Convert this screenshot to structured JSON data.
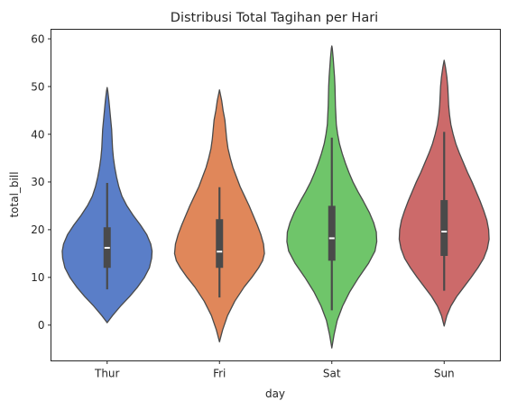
{
  "chart_data": {
    "type": "violin",
    "title": "Distribusi Total Tagihan per Hari",
    "xlabel": "day",
    "ylabel": "total_bill",
    "ylim": [
      -7.5,
      62
    ],
    "yticks": [
      0,
      10,
      20,
      30,
      40,
      50,
      60
    ],
    "grid": false,
    "legend": "none",
    "categories": [
      "Thur",
      "Fri",
      "Sat",
      "Sun"
    ],
    "colors": [
      "#5a7ec8",
      "#e0875a",
      "#6fc56a",
      "#cc6a6a"
    ],
    "violins": [
      {
        "category": "Thur",
        "extent": [
          0.5,
          49.8
        ],
        "whisker": [
          7.5,
          29.8
        ],
        "q1": 12.0,
        "median": 16.2,
        "q3": 20.5,
        "profile": [
          [
            0.5,
            0.0
          ],
          [
            2,
            0.12
          ],
          [
            4,
            0.3
          ],
          [
            6,
            0.5
          ],
          [
            8,
            0.68
          ],
          [
            10,
            0.83
          ],
          [
            12,
            0.94
          ],
          [
            14,
            0.99
          ],
          [
            15.5,
            1.0
          ],
          [
            17,
            0.97
          ],
          [
            19,
            0.88
          ],
          [
            21,
            0.74
          ],
          [
            23,
            0.58
          ],
          [
            25,
            0.44
          ],
          [
            27,
            0.33
          ],
          [
            29,
            0.26
          ],
          [
            31,
            0.21
          ],
          [
            33,
            0.17
          ],
          [
            35,
            0.14
          ],
          [
            37,
            0.12
          ],
          [
            39,
            0.11
          ],
          [
            41,
            0.1
          ],
          [
            43,
            0.08
          ],
          [
            45,
            0.06
          ],
          [
            47,
            0.04
          ],
          [
            49,
            0.015
          ],
          [
            49.8,
            0.0
          ]
        ]
      },
      {
        "category": "Fri",
        "extent": [
          -3.5,
          49.3
        ],
        "whisker": [
          5.8,
          28.9
        ],
        "q1": 12.0,
        "median": 15.4,
        "q3": 22.2,
        "profile": [
          [
            -3.5,
            0.0
          ],
          [
            -1,
            0.07
          ],
          [
            2,
            0.18
          ],
          [
            5,
            0.34
          ],
          [
            8,
            0.55
          ],
          [
            10,
            0.72
          ],
          [
            12,
            0.87
          ],
          [
            13.5,
            0.96
          ],
          [
            15,
            1.0
          ],
          [
            17,
            0.98
          ],
          [
            19,
            0.92
          ],
          [
            21,
            0.84
          ],
          [
            23,
            0.75
          ],
          [
            25,
            0.66
          ],
          [
            27,
            0.56
          ],
          [
            29,
            0.46
          ],
          [
            31,
            0.38
          ],
          [
            33,
            0.3
          ],
          [
            35,
            0.24
          ],
          [
            37,
            0.19
          ],
          [
            39,
            0.16
          ],
          [
            41,
            0.14
          ],
          [
            43,
            0.12
          ],
          [
            45,
            0.08
          ],
          [
            47,
            0.05
          ],
          [
            49.3,
            0.0
          ]
        ]
      },
      {
        "category": "Sat",
        "extent": [
          -4.8,
          58.5
        ],
        "whisker": [
          3.1,
          39.3
        ],
        "q1": 13.5,
        "median": 18.2,
        "q3": 25.0,
        "profile": [
          [
            -4.8,
            0.0
          ],
          [
            -2,
            0.05
          ],
          [
            1,
            0.12
          ],
          [
            4,
            0.24
          ],
          [
            7,
            0.4
          ],
          [
            10,
            0.6
          ],
          [
            13,
            0.82
          ],
          [
            15.5,
            0.96
          ],
          [
            17.5,
            1.0
          ],
          [
            19.5,
            0.99
          ],
          [
            21.5,
            0.93
          ],
          [
            23.5,
            0.84
          ],
          [
            26,
            0.7
          ],
          [
            28,
            0.58
          ],
          [
            30,
            0.47
          ],
          [
            32,
            0.38
          ],
          [
            34,
            0.3
          ],
          [
            36,
            0.23
          ],
          [
            38,
            0.17
          ],
          [
            40,
            0.13
          ],
          [
            42,
            0.1
          ],
          [
            44,
            0.09
          ],
          [
            46,
            0.08
          ],
          [
            48,
            0.075
          ],
          [
            50,
            0.07
          ],
          [
            52,
            0.06
          ],
          [
            54,
            0.045
          ],
          [
            56,
            0.03
          ],
          [
            58,
            0.01
          ],
          [
            58.5,
            0.0
          ]
        ]
      },
      {
        "category": "Sun",
        "extent": [
          -0.2,
          55.5
        ],
        "whisker": [
          7.2,
          40.5
        ],
        "q1": 14.5,
        "median": 19.6,
        "q3": 26.2,
        "profile": [
          [
            -0.2,
            0.0
          ],
          [
            2,
            0.06
          ],
          [
            4,
            0.15
          ],
          [
            6,
            0.28
          ],
          [
            8,
            0.44
          ],
          [
            10,
            0.6
          ],
          [
            12,
            0.75
          ],
          [
            14,
            0.88
          ],
          [
            16,
            0.96
          ],
          [
            18,
            1.0
          ],
          [
            20,
            0.99
          ],
          [
            22,
            0.95
          ],
          [
            24,
            0.88
          ],
          [
            26,
            0.8
          ],
          [
            28,
            0.71
          ],
          [
            30,
            0.62
          ],
          [
            32,
            0.52
          ],
          [
            34,
            0.43
          ],
          [
            36,
            0.34
          ],
          [
            38,
            0.26
          ],
          [
            40,
            0.2
          ],
          [
            42,
            0.15
          ],
          [
            44,
            0.12
          ],
          [
            46,
            0.1
          ],
          [
            48,
            0.09
          ],
          [
            50,
            0.08
          ],
          [
            52,
            0.06
          ],
          [
            54,
            0.03
          ],
          [
            55.5,
            0.0
          ]
        ]
      }
    ]
  }
}
